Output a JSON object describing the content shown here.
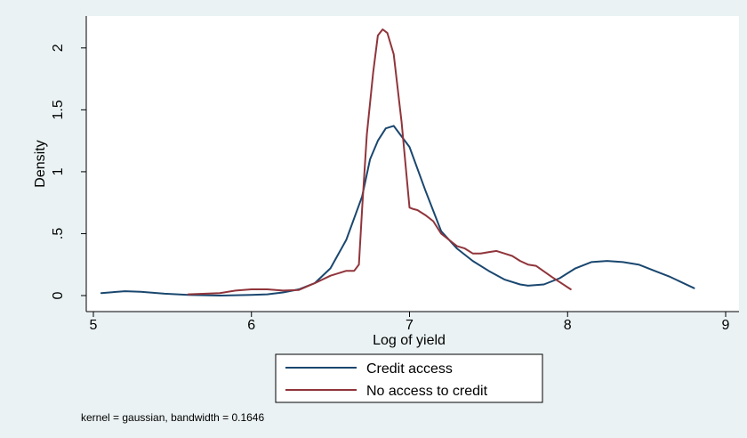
{
  "chart_data": {
    "type": "line",
    "title": "",
    "xlabel": "Log of yield",
    "ylabel": "Density",
    "xlim": [
      5,
      9
    ],
    "ylim": [
      0,
      2.2
    ],
    "x_ticks": [
      5,
      6,
      7,
      8,
      9
    ],
    "x_tick_labels": [
      "5",
      "6",
      "7",
      "8",
      "9"
    ],
    "y_ticks": [
      0,
      0.5,
      1,
      1.5,
      2
    ],
    "y_tick_labels": [
      "0",
      ".5",
      "1",
      "1.5",
      "2"
    ],
    "grid": false,
    "legend_position": "bottom",
    "note": "kernel = gaussian, bandwidth = 0.1646",
    "series": [
      {
        "name": "Credit access",
        "color": "#1a476f",
        "x": [
          5.05,
          5.2,
          5.3,
          5.45,
          5.6,
          5.8,
          6.0,
          6.1,
          6.2,
          6.3,
          6.4,
          6.5,
          6.6,
          6.7,
          6.75,
          6.8,
          6.85,
          6.9,
          7.0,
          7.1,
          7.2,
          7.3,
          7.4,
          7.5,
          7.6,
          7.7,
          7.75,
          7.85,
          7.95,
          8.05,
          8.15,
          8.25,
          8.35,
          8.45,
          8.55,
          8.65,
          8.8
        ],
        "y": [
          0.02,
          0.035,
          0.03,
          0.015,
          0.005,
          0.0,
          0.005,
          0.01,
          0.025,
          0.05,
          0.1,
          0.22,
          0.45,
          0.8,
          1.1,
          1.25,
          1.35,
          1.37,
          1.2,
          0.85,
          0.52,
          0.38,
          0.28,
          0.2,
          0.13,
          0.09,
          0.08,
          0.09,
          0.14,
          0.22,
          0.27,
          0.28,
          0.27,
          0.25,
          0.2,
          0.15,
          0.06
        ]
      },
      {
        "name": "No access to credit",
        "color": "#90353b",
        "x": [
          5.6,
          5.8,
          5.9,
          6.0,
          6.1,
          6.2,
          6.3,
          6.4,
          6.5,
          6.6,
          6.65,
          6.68,
          6.7,
          6.73,
          6.77,
          6.8,
          6.83,
          6.86,
          6.9,
          6.95,
          7.0,
          7.02,
          7.05,
          7.1,
          7.15,
          7.2,
          7.25,
          7.3,
          7.35,
          7.4,
          7.45,
          7.5,
          7.55,
          7.6,
          7.65,
          7.7,
          7.75,
          7.8,
          7.9,
          8.02
        ],
        "y": [
          0.01,
          0.02,
          0.04,
          0.05,
          0.05,
          0.04,
          0.045,
          0.1,
          0.16,
          0.2,
          0.2,
          0.25,
          0.7,
          1.3,
          1.8,
          2.1,
          2.15,
          2.12,
          1.95,
          1.4,
          0.71,
          0.7,
          0.69,
          0.65,
          0.6,
          0.5,
          0.45,
          0.4,
          0.38,
          0.34,
          0.34,
          0.35,
          0.36,
          0.34,
          0.32,
          0.28,
          0.25,
          0.24,
          0.15,
          0.05
        ]
      }
    ]
  }
}
